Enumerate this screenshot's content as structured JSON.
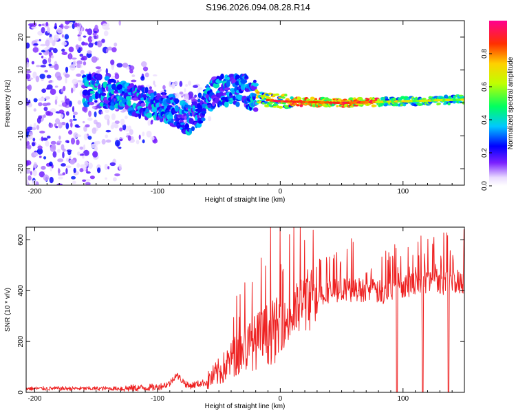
{
  "title": "S196.2026.094.08.28.R14",
  "chart_data": [
    {
      "type": "heatmap",
      "xlabel": "Height of straight line (km)",
      "ylabel": "Frequency (Hz)",
      "xlim": [
        -207,
        150
      ],
      "ylim": [
        -25,
        25
      ],
      "xticks": [
        -200,
        -100,
        0,
        100
      ],
      "yticks": [
        -20,
        -10,
        0,
        10,
        20
      ],
      "colorbar": {
        "label": "Normalized spectral amplitude",
        "range": [
          0,
          1
        ],
        "ticks": [
          0.0,
          0.2,
          0.4,
          0.6,
          0.8
        ]
      },
      "ridge": [
        {
          "x": -150,
          "freq": 4
        },
        {
          "x": -130,
          "freq": 2
        },
        {
          "x": -110,
          "freq": 0
        },
        {
          "x": -90,
          "freq": -2
        },
        {
          "x": -75,
          "freq": -5
        },
        {
          "x": -65,
          "freq": -2
        },
        {
          "x": -55,
          "freq": 3
        },
        {
          "x": -45,
          "freq": 4
        },
        {
          "x": -30,
          "freq": 4
        },
        {
          "x": -15,
          "freq": 1
        },
        {
          "x": 0,
          "freq": 0.5
        },
        {
          "x": 50,
          "freq": 0
        },
        {
          "x": 100,
          "freq": 0.5
        },
        {
          "x": 150,
          "freq": 1
        }
      ]
    },
    {
      "type": "line",
      "xlabel": "Height of straight line (km)",
      "ylabel": "SNR (10 * v/v)",
      "xlim": [
        -207,
        150
      ],
      "ylim": [
        0,
        650
      ],
      "xticks": [
        -200,
        -100,
        0,
        100
      ],
      "yticks": [
        0,
        200,
        400,
        600
      ],
      "color": "#ee2222",
      "trend": [
        {
          "x": -207,
          "y": 15
        },
        {
          "x": -130,
          "y": 15
        },
        {
          "x": -100,
          "y": 20
        },
        {
          "x": -90,
          "y": 35
        },
        {
          "x": -85,
          "y": 70
        },
        {
          "x": -75,
          "y": 25
        },
        {
          "x": -60,
          "y": 40
        },
        {
          "x": -45,
          "y": 100
        },
        {
          "x": -35,
          "y": 150
        },
        {
          "x": -20,
          "y": 200
        },
        {
          "x": -10,
          "y": 230
        },
        {
          "x": 0,
          "y": 250
        },
        {
          "x": 10,
          "y": 300
        },
        {
          "x": 20,
          "y": 360
        },
        {
          "x": 40,
          "y": 400
        },
        {
          "x": 70,
          "y": 405
        },
        {
          "x": 85,
          "y": 390
        },
        {
          "x": 95,
          "y": 420
        },
        {
          "x": 120,
          "y": 435
        },
        {
          "x": 150,
          "y": 440
        }
      ],
      "dropouts": [
        95,
        116,
        137
      ]
    }
  ]
}
